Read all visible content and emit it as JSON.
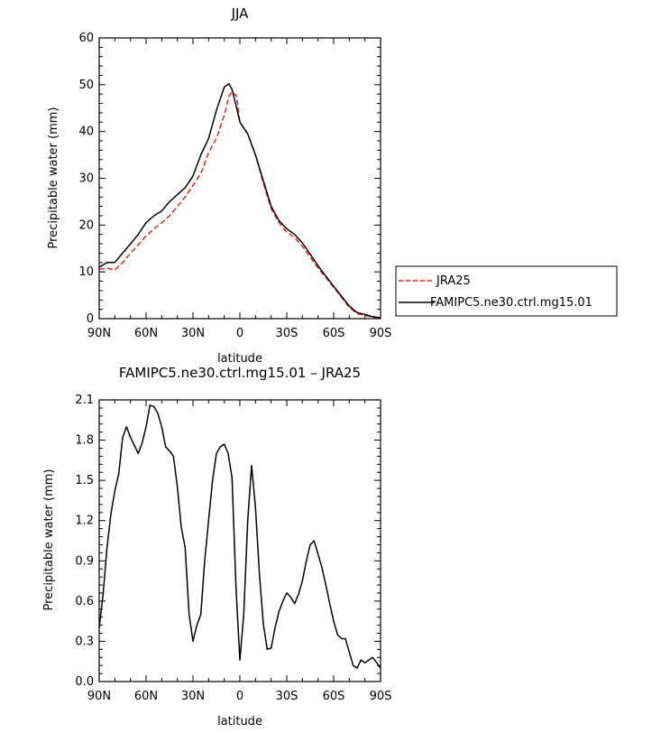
{
  "chart_data": [
    {
      "type": "line",
      "title": "JJA",
      "xlabel": "latitude",
      "ylabel": "Precipitable water (mm)",
      "xlim": [
        90,
        -90
      ],
      "ylim": [
        0,
        60
      ],
      "x_tick_values": [
        90,
        60,
        30,
        0,
        -30,
        -60,
        -90
      ],
      "x_tick_labels": [
        "90N",
        "60N",
        "30N",
        "0",
        "30S",
        "60S",
        "90S"
      ],
      "y_tick_values": [
        0,
        10,
        20,
        30,
        40,
        50,
        60
      ],
      "y_tick_labels": [
        "0",
        "10",
        "20",
        "30",
        "40",
        "50",
        "60"
      ],
      "legend_position": "outside-right",
      "series": [
        {
          "name": "JRA25",
          "color": "#e8231f",
          "dash": "dashed",
          "x": [
            90,
            85,
            80,
            75,
            70,
            65,
            60,
            55,
            50,
            45,
            40,
            35,
            30,
            25,
            20,
            15,
            10,
            7,
            5,
            2,
            0,
            -5,
            -10,
            -15,
            -20,
            -25,
            -30,
            -35,
            -40,
            -45,
            -50,
            -55,
            -60,
            -65,
            -70,
            -75,
            -80,
            -85,
            -90
          ],
          "values": [
            10.6,
            10.8,
            10.4,
            12.0,
            14.0,
            15.8,
            17.7,
            19.2,
            20.5,
            22.0,
            24.0,
            26.0,
            28.5,
            31.0,
            35.5,
            38.5,
            43.5,
            47.5,
            48.5,
            47.5,
            42.0,
            39.5,
            35.0,
            29.0,
            23.5,
            20.5,
            18.5,
            17.3,
            15.5,
            13.2,
            10.8,
            8.8,
            6.7,
            4.6,
            2.4,
            1.1,
            0.7,
            0.3,
            0.1
          ]
        },
        {
          "name": "FAMIPC5.ne30.ctrl.mg15.01",
          "color": "#000000",
          "dash": "solid",
          "x": [
            90,
            85,
            80,
            75,
            70,
            65,
            60,
            55,
            50,
            45,
            40,
            35,
            30,
            25,
            20,
            15,
            10,
            7,
            5,
            2,
            0,
            -5,
            -10,
            -15,
            -20,
            -25,
            -30,
            -35,
            -40,
            -45,
            -50,
            -55,
            -60,
            -65,
            -70,
            -75,
            -80,
            -85,
            -90
          ],
          "values": [
            11.0,
            12.0,
            12.0,
            14.0,
            16.0,
            18.0,
            20.5,
            22.0,
            23.0,
            25.0,
            26.5,
            28.0,
            30.5,
            35.0,
            38.5,
            44.5,
            49.5,
            50.2,
            49.0,
            45.0,
            42.0,
            39.5,
            35.0,
            29.5,
            24.0,
            21.0,
            19.2,
            18.0,
            16.2,
            13.8,
            11.3,
            9.1,
            6.9,
            4.8,
            2.7,
            1.3,
            0.9,
            0.4,
            0.2
          ]
        }
      ]
    },
    {
      "type": "line",
      "title": "FAMIPC5.ne30.ctrl.mg15.01 – JRA25",
      "xlabel": "latitude",
      "ylabel": "Precipitable water (mm)",
      "xlim": [
        90,
        -90
      ],
      "ylim": [
        0,
        2.1
      ],
      "x_tick_values": [
        90,
        60,
        30,
        0,
        -30,
        -60,
        -90
      ],
      "x_tick_labels": [
        "90N",
        "60N",
        "30N",
        "0",
        "30S",
        "60S",
        "90S"
      ],
      "y_tick_values": [
        0,
        0.3,
        0.6,
        0.9,
        1.2,
        1.5,
        1.8,
        2.1
      ],
      "y_tick_labels": [
        "0.0",
        "0.3",
        "0.6",
        "0.9",
        "1.2",
        "1.5",
        "1.8",
        "2.1"
      ],
      "series": [
        {
          "color": "#000000",
          "dash": "solid",
          "x": [
            90,
            87.5,
            85,
            82.5,
            80,
            77.5,
            75,
            72.5,
            70,
            67.5,
            65,
            62.5,
            60,
            57.5,
            55,
            52.5,
            50,
            47.5,
            45,
            42.5,
            40,
            37.5,
            35,
            32.5,
            30,
            27.5,
            25,
            22.5,
            20,
            17.5,
            15,
            12.5,
            10,
            7.5,
            5,
            2.5,
            0,
            -2.5,
            -5,
            -7.5,
            -10,
            -12.5,
            -15,
            -17.5,
            -20,
            -22.5,
            -25,
            -27.5,
            -30,
            -32.5,
            -35,
            -37.5,
            -40,
            -42.5,
            -45,
            -47.5,
            -50,
            -52.5,
            -55,
            -57.5,
            -60,
            -62.5,
            -65,
            -67.5,
            -70,
            -72.5,
            -75,
            -77.5,
            -80,
            -82.5,
            -85,
            -87.5,
            -90
          ],
          "values": [
            0.4,
            0.65,
            1.0,
            1.25,
            1.42,
            1.55,
            1.82,
            1.9,
            1.82,
            1.76,
            1.7,
            1.78,
            1.9,
            2.06,
            2.05,
            2.0,
            1.9,
            1.75,
            1.72,
            1.68,
            1.45,
            1.15,
            1.0,
            0.5,
            0.3,
            0.42,
            0.5,
            0.9,
            1.2,
            1.5,
            1.7,
            1.75,
            1.77,
            1.7,
            1.52,
            0.7,
            0.16,
            0.5,
            1.2,
            1.61,
            1.3,
            0.8,
            0.43,
            0.24,
            0.25,
            0.4,
            0.52,
            0.6,
            0.66,
            0.63,
            0.58,
            0.65,
            0.75,
            0.9,
            1.02,
            1.05,
            0.95,
            0.85,
            0.72,
            0.58,
            0.45,
            0.35,
            0.32,
            0.32,
            0.22,
            0.12,
            0.1,
            0.16,
            0.14,
            0.16,
            0.18,
            0.14,
            0.1
          ]
        }
      ]
    }
  ]
}
